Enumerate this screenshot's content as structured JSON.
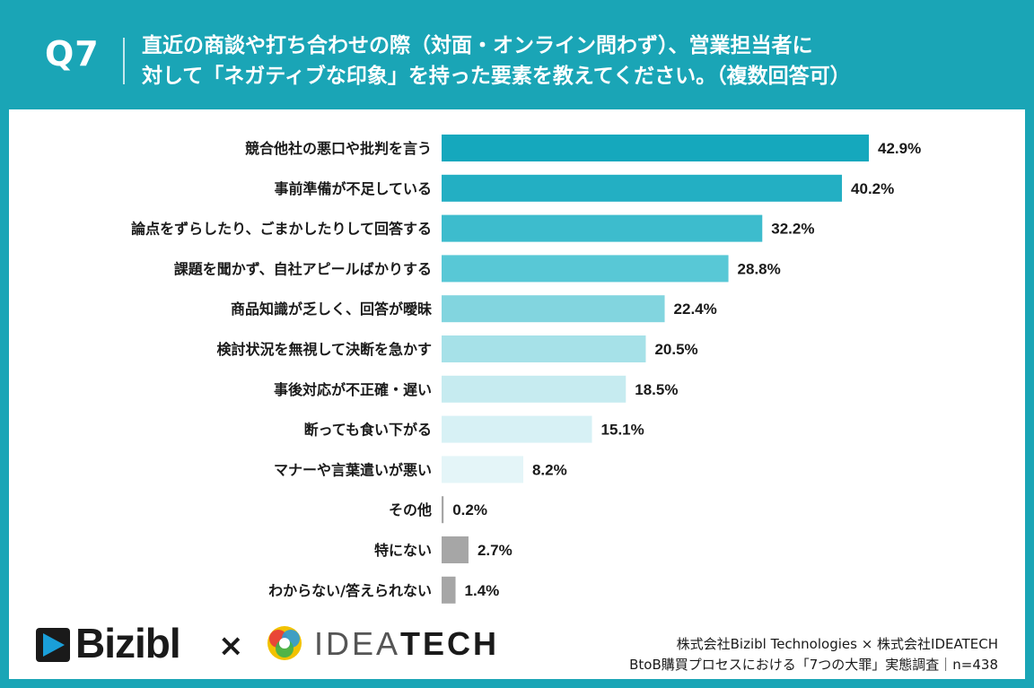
{
  "header": {
    "question_number": "Q7",
    "question_line1": "直近の商談や打ち合わせの際（対面・オンライン問わず）、営業担当者に",
    "question_line2": "対して「ネガティブな印象」を持った要素を教えてください。（複数回答可）"
  },
  "chart_data": {
    "type": "bar",
    "orientation": "horizontal",
    "title": "直近の商談や打ち合わせの際（対面・オンライン問わず）、営業担当者に対して「ネガティブな印象」を持った要素を教えてください。（複数回答可）",
    "categories": [
      "競合他社の悪口や批判を言う",
      "事前準備が不足している",
      "論点をずらしたり、ごまかしたりして回答する",
      "課題を聞かず、自社アピールばかりする",
      "商品知識が乏しく、回答が曖昧",
      "検討状況を無視して決断を急かす",
      "事後対応が不正確・遅い",
      "断っても食い下がる",
      "マナーや言葉遣いが悪い",
      "その他",
      "特にない",
      "わからない/答えられない"
    ],
    "values": [
      42.9,
      40.2,
      32.2,
      28.8,
      22.4,
      20.5,
      18.5,
      15.1,
      8.2,
      0.2,
      2.7,
      1.4
    ],
    "value_labels": [
      "42.9%",
      "40.2%",
      "32.2%",
      "28.8%",
      "22.4%",
      "20.5%",
      "18.5%",
      "15.1%",
      "8.2%",
      "0.2%",
      "2.7%",
      "1.4%"
    ],
    "unit": "%",
    "xlim": [
      0,
      45
    ],
    "colors": [
      "#15a8bd",
      "#23afc3",
      "#3dbccd",
      "#58c8d6",
      "#82d5df",
      "#a6e1e8",
      "#c6ebf0",
      "#d7f1f5",
      "#e4f5f8",
      "#a6a6a6",
      "#a6a6a6",
      "#a6a6a6"
    ]
  },
  "footer": {
    "brand1": "Bizibl",
    "times": "×",
    "brand2_light": "IDEA",
    "brand2_bold": "TECH",
    "credit_line1": "株式会社Bizibl Technologies × 株式会社IDEATECH",
    "credit_line2": "BtoB購買プロセスにおける「7つの大罪」実態調査｜n=438"
  },
  "colors": {
    "header_bg": "#1aa5b6",
    "bizibl_blue": "#1a9fd9"
  }
}
